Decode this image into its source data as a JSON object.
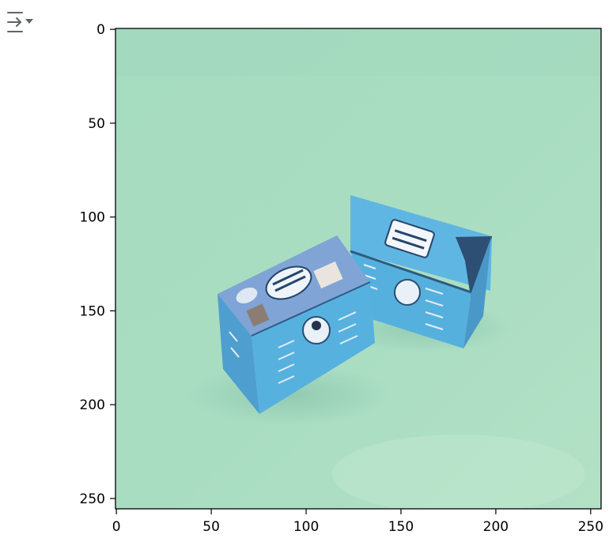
{
  "toolbar": {
    "icon": "output-collapse-icon"
  },
  "chart_data": {
    "type": "image",
    "x_ticks": [
      0,
      50,
      100,
      150,
      200,
      250
    ],
    "y_ticks": [
      0,
      50,
      100,
      150,
      200,
      250
    ],
    "xlim": [
      -0.5,
      255.5
    ],
    "ylim": [
      255.5,
      -0.5
    ],
    "image_size": [
      256,
      256
    ],
    "image_content": "two light-blue printed cardboard boxes on a mint-green background",
    "colors": {
      "background": "#a9dcc0",
      "box_blue": "#58b3e0",
      "box_shade": "#3f8fbf",
      "box_top": "#7aa6d6"
    }
  }
}
